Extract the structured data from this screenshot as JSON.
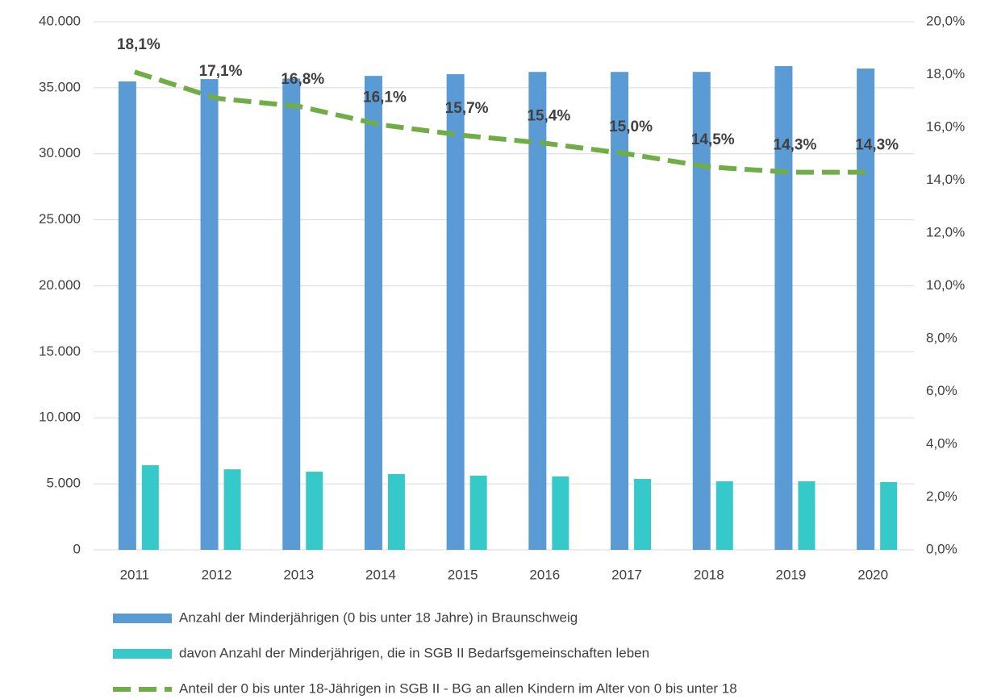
{
  "chart_data": {
    "type": "bar_line",
    "categories": [
      "2011",
      "2012",
      "2013",
      "2014",
      "2015",
      "2016",
      "2017",
      "2018",
      "2019",
      "2020"
    ],
    "series": [
      {
        "name": "Anzahl der Minderjährigen (0 bis unter 18 Jahre) in Braunschweig",
        "type": "bar",
        "color": "#5b9bd5",
        "values": [
          35480,
          35660,
          35700,
          35900,
          36030,
          36200,
          36200,
          36200,
          36640,
          36460
        ]
      },
      {
        "name": "davon Anzahl der Minderjährigen, die in SGB II Bedarfsgemeinschaften leben",
        "type": "bar",
        "color": "#36c9c9",
        "values": [
          6410,
          6100,
          5920,
          5740,
          5620,
          5560,
          5370,
          5190,
          5190,
          5130
        ]
      },
      {
        "name": "Anteil der 0 bis unter 18-Jährigen in SGB II - BG an allen Kindern im Alter von 0 bis unter 18",
        "type": "line",
        "axis": "y2",
        "color": "#70ad47",
        "dashed": true,
        "values": [
          18.1,
          17.1,
          16.8,
          16.1,
          15.7,
          15.4,
          15.0,
          14.5,
          14.3,
          14.3
        ],
        "value_labels": [
          "18,1%",
          "17,1%",
          "16,8%",
          "16,1%",
          "15,7%",
          "15,4%",
          "15,0%",
          "14,5%",
          "14,3%",
          "14,3%"
        ]
      }
    ],
    "ylim": [
      0,
      40000
    ],
    "yticks": [
      {
        "value": 0,
        "label": "0"
      },
      {
        "value": 5000,
        "label": "5.000"
      },
      {
        "value": 10000,
        "label": "10.000"
      },
      {
        "value": 15000,
        "label": "15.000"
      },
      {
        "value": 20000,
        "label": "20.000"
      },
      {
        "value": 25000,
        "label": "25.000"
      },
      {
        "value": 30000,
        "label": "30.000"
      },
      {
        "value": 35000,
        "label": "35.000"
      },
      {
        "value": 40000,
        "label": "40.000"
      }
    ],
    "y2lim": [
      0,
      20
    ],
    "y2ticks": [
      {
        "value": 0,
        "label": "0,0%"
      },
      {
        "value": 2,
        "label": "2,0%"
      },
      {
        "value": 4,
        "label": "4,0%"
      },
      {
        "value": 6,
        "label": "6,0%"
      },
      {
        "value": 8,
        "label": "8,0%"
      },
      {
        "value": 10,
        "label": "10,0%"
      },
      {
        "value": 12,
        "label": "12,0%"
      },
      {
        "value": 14,
        "label": "14,0%"
      },
      {
        "value": 16,
        "label": "16,0%"
      },
      {
        "value": 18,
        "label": "18,0%"
      },
      {
        "value": 20,
        "label": "20,0%"
      }
    ],
    "grid": true,
    "legend": "bottom"
  }
}
